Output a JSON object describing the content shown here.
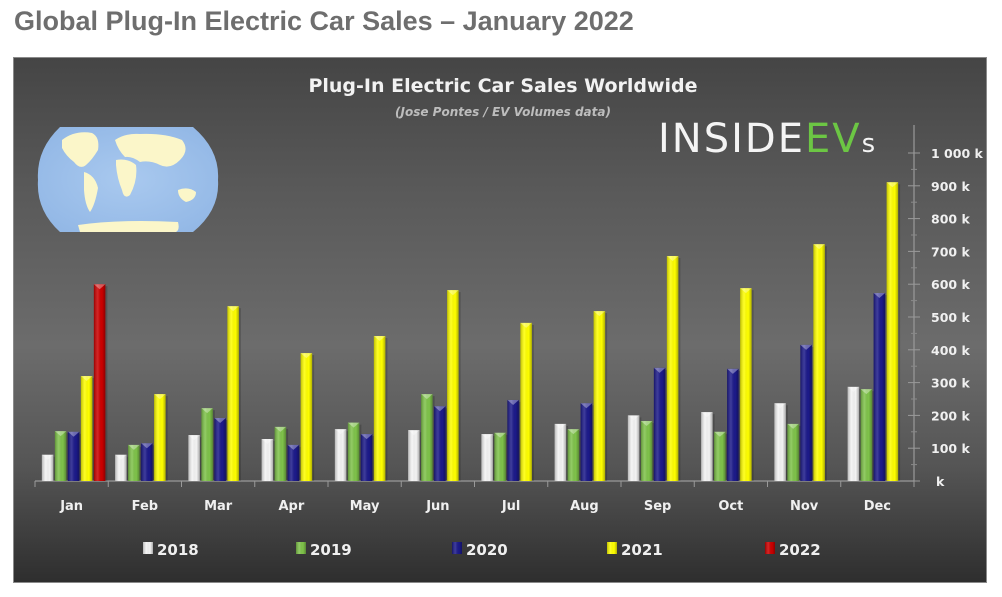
{
  "page": {
    "title": "Global Plug-In Electric Car Sales – January 2022"
  },
  "logo": {
    "text_white": "INSIDE",
    "text_green": "EV",
    "text_small": "s",
    "green_color": "#6cc644"
  },
  "map_icon": "world-map-icon",
  "chart_data": {
    "type": "bar",
    "title": "Plug-In Electric Car Sales Worldwide",
    "subtitle": "(Jose Pontes / EV Volumes data)",
    "xlabel": "",
    "ylabel": "",
    "ylim": [
      0,
      1000
    ],
    "y_unit": "k",
    "y_ticks": [
      0,
      100,
      200,
      300,
      400,
      500,
      600,
      700,
      800,
      900,
      1000
    ],
    "y_tick_labels": [
      "k",
      "100 k",
      "200 k",
      "300 k",
      "400 k",
      "500 k",
      "600 k",
      "700 k",
      "800 k",
      "900 k",
      "1 000 k"
    ],
    "y_axis_side": "right",
    "grid": false,
    "legend_position": "bottom",
    "categories": [
      "Jan",
      "Feb",
      "Mar",
      "Apr",
      "May",
      "Jun",
      "Jul",
      "Aug",
      "Sep",
      "Oct",
      "Nov",
      "Dec"
    ],
    "series": [
      {
        "name": "2018",
        "color": "#f4f4f4",
        "values": [
          80,
          80,
          140,
          128,
          158,
          155,
          143,
          174,
          200,
          210,
          237,
          287
        ]
      },
      {
        "name": "2019",
        "color": "#7fc34a",
        "values": [
          152,
          110,
          222,
          165,
          178,
          265,
          147,
          158,
          183,
          150,
          174,
          280
        ]
      },
      {
        "name": "2020",
        "color": "#1c1a8a",
        "values": [
          150,
          115,
          192,
          110,
          143,
          228,
          247,
          237,
          345,
          342,
          415,
          573
        ]
      },
      {
        "name": "2021",
        "color": "#ffff00",
        "values": [
          320,
          265,
          533,
          390,
          442,
          582,
          482,
          518,
          686,
          588,
          722,
          911
        ]
      },
      {
        "name": "2022",
        "color": "#cc0000",
        "values": [
          600,
          null,
          null,
          null,
          null,
          null,
          null,
          null,
          null,
          null,
          null,
          null
        ]
      }
    ]
  }
}
